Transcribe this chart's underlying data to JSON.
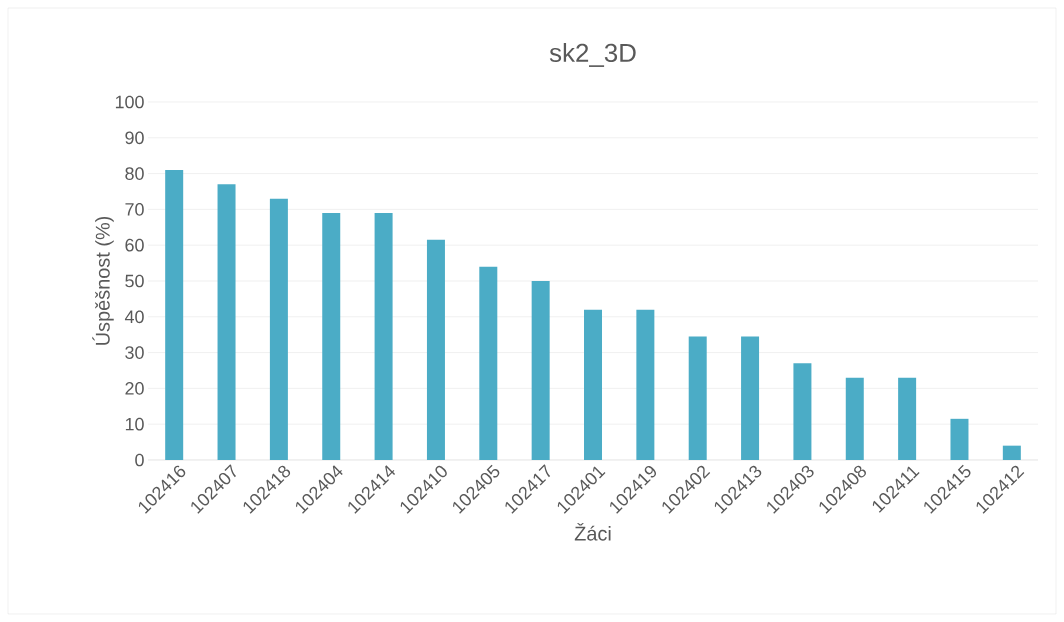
{
  "chart_data": {
    "type": "bar",
    "title": "sk2_3D",
    "xlabel": "Žáci",
    "ylabel": "Úspěšnost (%)",
    "categories": [
      "102416",
      "102407",
      "102418",
      "102404",
      "102414",
      "102410",
      "102405",
      "102417",
      "102401",
      "102419",
      "102402",
      "102413",
      "102403",
      "102408",
      "102411",
      "102415",
      "102412"
    ],
    "values": [
      81,
      77,
      73,
      69,
      69,
      61.5,
      54,
      50,
      42,
      42,
      34.5,
      34.5,
      27,
      23,
      23,
      11.5,
      4
    ],
    "color": "#4bacc6",
    "ylim": [
      0,
      100
    ],
    "yticks": [
      0,
      10,
      20,
      30,
      40,
      50,
      60,
      70,
      80,
      90,
      100
    ],
    "grid": "y"
  }
}
